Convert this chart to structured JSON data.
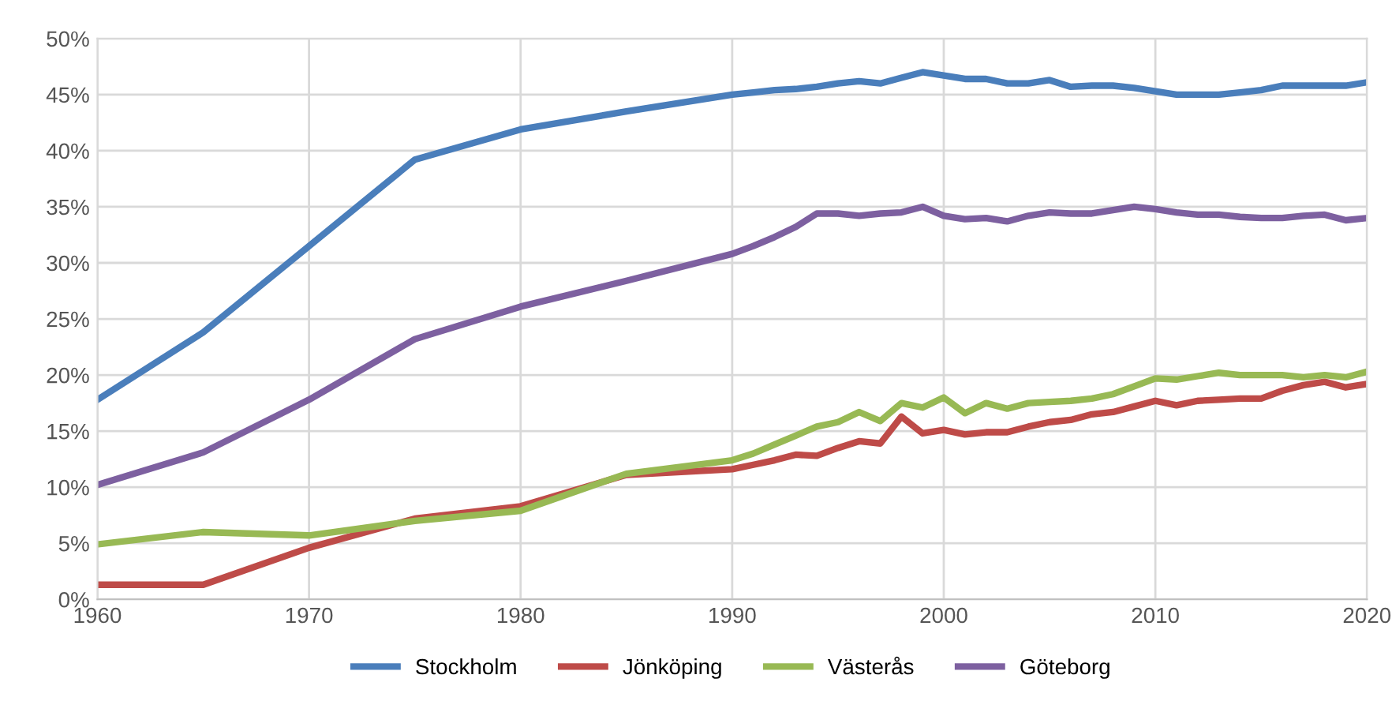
{
  "chart_data": {
    "type": "line",
    "x": [
      1960,
      1965,
      1970,
      1975,
      1980,
      1985,
      1990,
      1991,
      1992,
      1993,
      1994,
      1995,
      1996,
      1997,
      1998,
      1999,
      2000,
      2001,
      2002,
      2003,
      2004,
      2005,
      2006,
      2007,
      2008,
      2009,
      2010,
      2011,
      2012,
      2013,
      2014,
      2015,
      2016,
      2017,
      2018,
      2019,
      2020
    ],
    "series": [
      {
        "name": "Stockholm",
        "color": "#4a7ebb",
        "values": [
          17.8,
          23.8,
          31.5,
          39.2,
          41.9,
          43.5,
          45.0,
          45.2,
          45.4,
          45.5,
          45.7,
          46.0,
          46.2,
          46.0,
          46.5,
          47.0,
          46.7,
          46.4,
          46.4,
          46.0,
          46.0,
          46.3,
          45.7,
          45.8,
          45.8,
          45.6,
          45.3,
          45.0,
          45.0,
          45.0,
          45.2,
          45.4,
          45.8,
          45.8,
          45.8,
          45.8,
          46.1
        ]
      },
      {
        "name": "Jönköping",
        "color": "#be4b48",
        "values": [
          1.3,
          1.3,
          4.6,
          7.2,
          8.3,
          11.1,
          11.6,
          12.0,
          12.4,
          12.9,
          12.8,
          13.5,
          14.1,
          13.9,
          16.3,
          14.8,
          15.1,
          14.7,
          14.9,
          14.9,
          15.4,
          15.8,
          16.0,
          16.5,
          16.7,
          17.2,
          17.7,
          17.3,
          17.7,
          17.8,
          17.9,
          17.9,
          18.6,
          19.1,
          19.4,
          18.9,
          19.2
        ]
      },
      {
        "name": "Västerås",
        "color": "#98b954",
        "values": [
          4.9,
          6.0,
          5.7,
          7.0,
          7.9,
          11.2,
          12.4,
          13.0,
          13.8,
          14.6,
          15.4,
          15.8,
          16.7,
          15.9,
          17.5,
          17.1,
          18.0,
          16.6,
          17.5,
          17.0,
          17.5,
          17.6,
          17.7,
          17.9,
          18.3,
          19.0,
          19.7,
          19.6,
          19.9,
          20.2,
          20.0,
          20.0,
          20.0,
          19.8,
          20.0,
          19.8,
          20.3
        ]
      },
      {
        "name": "Göteborg",
        "color": "#7d60a0",
        "values": [
          10.2,
          13.1,
          17.8,
          23.2,
          26.1,
          28.4,
          30.8,
          31.5,
          32.3,
          33.2,
          34.4,
          34.4,
          34.2,
          34.4,
          34.5,
          35.0,
          34.2,
          33.9,
          34.0,
          33.7,
          34.2,
          34.5,
          34.4,
          34.4,
          34.7,
          35.0,
          34.8,
          34.5,
          34.3,
          34.3,
          34.1,
          34.0,
          34.0,
          34.2,
          34.3,
          33.8,
          34.0
        ]
      }
    ],
    "xlim": [
      1960,
      2020
    ],
    "xticks": [
      1960,
      1970,
      1980,
      1990,
      2000,
      2010,
      2020
    ],
    "ylim": [
      0,
      50
    ],
    "yticks": [
      {
        "value": 0,
        "label": "0%"
      },
      {
        "value": 5,
        "label": "5%"
      },
      {
        "value": 10,
        "label": "10%"
      },
      {
        "value": 15,
        "label": "15%"
      },
      {
        "value": 20,
        "label": "20%"
      },
      {
        "value": 25,
        "label": "25%"
      },
      {
        "value": 30,
        "label": "30%"
      },
      {
        "value": 35,
        "label": "35%"
      },
      {
        "value": 40,
        "label": "40%"
      },
      {
        "value": 45,
        "label": "45%"
      },
      {
        "value": 50,
        "label": "50%"
      }
    ],
    "grid": true,
    "legend": "bottom",
    "marker": "none",
    "line_style": "solid"
  }
}
